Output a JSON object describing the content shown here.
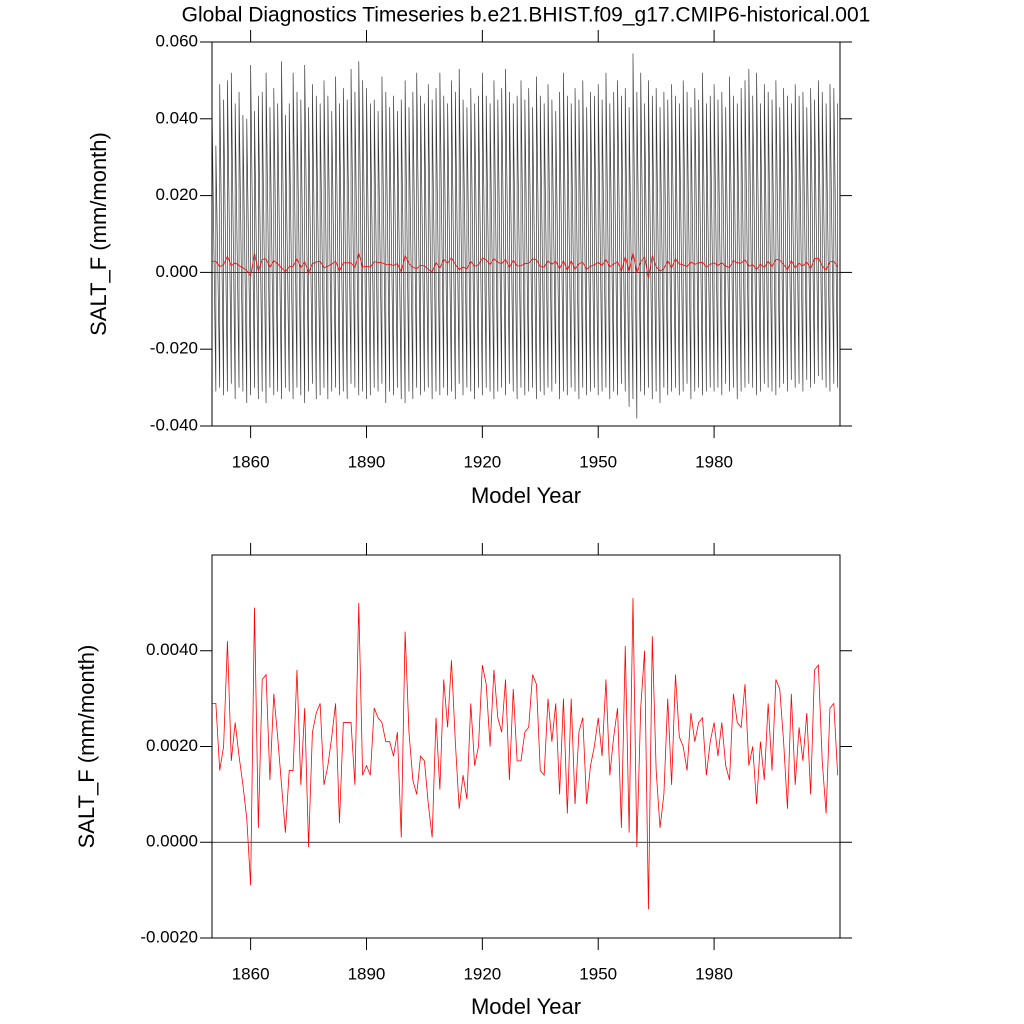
{
  "chart_data": [
    {
      "type": "line",
      "title": "Global Diagnostics Timeseries b.e21.BHIST.f09_g17.CMIP6-historical.001",
      "y_label": "SALT_F (mm/month)",
      "x_label": "Model Year",
      "xlim": [
        1850,
        2012.6
      ],
      "xticks": [
        1860,
        1890,
        1920,
        1950,
        1980
      ],
      "ylim": [
        -0.04,
        0.06
      ],
      "yticks": [
        {
          "value": -0.04,
          "label": "-0.040"
        },
        {
          "value": -0.02,
          "label": "-0.020"
        },
        {
          "value": 0,
          "label": "0.000"
        },
        {
          "value": 0.02,
          "label": "0.020"
        },
        {
          "value": 0.04,
          "label": "0.040"
        },
        {
          "value": 0.06,
          "label": "0.060"
        }
      ],
      "reference_line": 0,
      "x": [
        1850,
        1851,
        1852,
        1853,
        1854,
        1855,
        1856,
        1857,
        1858,
        1859,
        1860,
        1861,
        1862,
        1863,
        1864,
        1865,
        1866,
        1867,
        1868,
        1869,
        1870,
        1871,
        1872,
        1873,
        1874,
        1875,
        1876,
        1877,
        1878,
        1879,
        1880,
        1881,
        1882,
        1883,
        1884,
        1885,
        1886,
        1887,
        1888,
        1889,
        1890,
        1891,
        1892,
        1893,
        1894,
        1895,
        1896,
        1897,
        1898,
        1899,
        1900,
        1901,
        1902,
        1903,
        1904,
        1905,
        1906,
        1907,
        1908,
        1909,
        1910,
        1911,
        1912,
        1913,
        1914,
        1915,
        1916,
        1917,
        1918,
        1919,
        1920,
        1921,
        1922,
        1923,
        1924,
        1925,
        1926,
        1927,
        1928,
        1929,
        1930,
        1931,
        1932,
        1933,
        1934,
        1935,
        1936,
        1937,
        1938,
        1939,
        1940,
        1941,
        1942,
        1943,
        1944,
        1945,
        1946,
        1947,
        1948,
        1949,
        1950,
        1951,
        1952,
        1953,
        1954,
        1955,
        1956,
        1957,
        1958,
        1959,
        1960,
        1961,
        1962,
        1963,
        1964,
        1965,
        1966,
        1967,
        1968,
        1969,
        1970,
        1971,
        1972,
        1973,
        1974,
        1975,
        1976,
        1977,
        1978,
        1979,
        1980,
        1981,
        1982,
        1983,
        1984,
        1985,
        1986,
        1987,
        1988,
        1989,
        1990,
        1991,
        1992,
        1993,
        1994,
        1995,
        1996,
        1997,
        1998,
        1999,
        2000,
        2001,
        2002,
        2003,
        2004,
        2005,
        2006,
        2007,
        2008,
        2009,
        2010,
        2011,
        2012
      ],
      "series": [
        {
          "color": "#3a3a3a",
          "high": [
            0.043,
            0.033,
            0.049,
            0.045,
            0.05,
            0.052,
            0.044,
            0.047,
            0.041,
            0.04,
            0.054,
            0.042,
            0.046,
            0.047,
            0.052,
            0.043,
            0.048,
            0.044,
            0.055,
            0.041,
            0.044,
            0.052,
            0.047,
            0.045,
            0.054,
            0.043,
            0.049,
            0.046,
            0.044,
            0.05,
            0.046,
            0.042,
            0.051,
            0.044,
            0.048,
            0.045,
            0.053,
            0.047,
            0.055,
            0.05,
            0.048,
            0.044,
            0.045,
            0.042,
            0.051,
            0.047,
            0.043,
            0.046,
            0.042,
            0.045,
            0.05,
            0.043,
            0.047,
            0.052,
            0.046,
            0.044,
            0.049,
            0.045,
            0.048,
            0.052,
            0.046,
            0.044,
            0.05,
            0.047,
            0.053,
            0.045,
            0.043,
            0.048,
            0.044,
            0.046,
            0.052,
            0.046,
            0.044,
            0.05,
            0.045,
            0.048,
            0.053,
            0.047,
            0.044,
            0.046,
            0.05,
            0.045,
            0.048,
            0.043,
            0.051,
            0.046,
            0.044,
            0.049,
            0.045,
            0.042,
            0.047,
            0.052,
            0.046,
            0.044,
            0.048,
            0.045,
            0.05,
            0.043,
            0.047,
            0.046,
            0.049,
            0.045,
            0.052,
            0.044,
            0.047,
            0.05,
            0.046,
            0.048,
            0.043,
            0.057,
            0.047,
            0.052,
            0.044,
            0.05,
            0.046,
            0.048,
            0.043,
            0.047,
            0.045,
            0.049,
            0.046,
            0.044,
            0.05,
            0.047,
            0.043,
            0.048,
            0.045,
            0.052,
            0.044,
            0.046,
            0.049,
            0.045,
            0.047,
            0.043,
            0.051,
            0.046,
            0.044,
            0.048,
            0.05,
            0.053,
            0.046,
            0.052,
            0.044,
            0.049,
            0.047,
            0.045,
            0.05,
            0.043,
            0.048,
            0.046,
            0.044,
            0.049,
            0.046,
            0.047,
            0.043,
            0.048,
            0.045,
            0.05,
            0.047,
            0.044,
            0.049,
            0.048,
            0.044
          ],
          "low": [
            -0.029,
            -0.031,
            -0.03,
            -0.032,
            -0.031,
            -0.029,
            -0.033,
            -0.03,
            -0.031,
            -0.034,
            -0.032,
            -0.03,
            -0.033,
            -0.031,
            -0.034,
            -0.03,
            -0.032,
            -0.031,
            -0.033,
            -0.03,
            -0.031,
            -0.033,
            -0.03,
            -0.032,
            -0.034,
            -0.031,
            -0.029,
            -0.033,
            -0.032,
            -0.03,
            -0.033,
            -0.031,
            -0.03,
            -0.032,
            -0.031,
            -0.033,
            -0.029,
            -0.03,
            -0.032,
            -0.031,
            -0.033,
            -0.032,
            -0.03,
            -0.031,
            -0.029,
            -0.034,
            -0.031,
            -0.032,
            -0.03,
            -0.033,
            -0.034,
            -0.031,
            -0.033,
            -0.03,
            -0.032,
            -0.031,
            -0.03,
            -0.033,
            -0.031,
            -0.032,
            -0.03,
            -0.032,
            -0.031,
            -0.033,
            -0.029,
            -0.032,
            -0.03,
            -0.031,
            -0.033,
            -0.03,
            -0.032,
            -0.03,
            -0.031,
            -0.033,
            -0.031,
            -0.03,
            -0.032,
            -0.029,
            -0.031,
            -0.033,
            -0.03,
            -0.032,
            -0.031,
            -0.03,
            -0.033,
            -0.031,
            -0.032,
            -0.03,
            -0.031,
            -0.029,
            -0.033,
            -0.031,
            -0.032,
            -0.03,
            -0.031,
            -0.033,
            -0.03,
            -0.032,
            -0.031,
            -0.03,
            -0.032,
            -0.031,
            -0.03,
            -0.033,
            -0.031,
            -0.032,
            -0.029,
            -0.031,
            -0.035,
            -0.033,
            -0.038,
            -0.031,
            -0.032,
            -0.03,
            -0.033,
            -0.031,
            -0.034,
            -0.03,
            -0.032,
            -0.031,
            -0.03,
            -0.032,
            -0.031,
            -0.029,
            -0.033,
            -0.031,
            -0.03,
            -0.032,
            -0.031,
            -0.03,
            -0.031,
            -0.03,
            -0.032,
            -0.029,
            -0.031,
            -0.03,
            -0.033,
            -0.031,
            -0.03,
            -0.029,
            -0.03,
            -0.032,
            -0.031,
            -0.029,
            -0.03,
            -0.031,
            -0.032,
            -0.03,
            -0.029,
            -0.031,
            -0.028,
            -0.03,
            -0.029,
            -0.031,
            -0.028,
            -0.03,
            -0.029,
            -0.027,
            -0.028,
            -0.03,
            -0.031,
            -0.029,
            -0.03
          ]
        },
        {
          "color": "#ff0000",
          "values": [
            0.0029,
            0.0029,
            0.0015,
            0.002,
            0.0042,
            0.0017,
            0.0025,
            0.0018,
            0.0012,
            0.0005,
            -0.0009,
            0.0049,
            0.0003,
            0.0034,
            0.0035,
            0.0013,
            0.0031,
            0.0022,
            0.0012,
            0.0002,
            0.0015,
            0.0015,
            0.0036,
            0.0012,
            0.0028,
            -0.0001,
            0.0023,
            0.0027,
            0.0029,
            0.0012,
            0.0016,
            0.0022,
            0.0029,
            0.0004,
            0.0025,
            0.0025,
            0.0025,
            0.0012,
            0.005,
            0.0014,
            0.0016,
            0.0014,
            0.0028,
            0.0026,
            0.0025,
            0.0021,
            0.0021,
            0.0018,
            0.0023,
            0.0001,
            0.0044,
            0.0023,
            0.0013,
            0.001,
            0.0018,
            0.0017,
            0.0008,
            0.0001,
            0.0026,
            0.0011,
            0.0034,
            0.0024,
            0.0038,
            0.0021,
            0.0007,
            0.0014,
            0.0009,
            0.0029,
            0.0016,
            0.002,
            0.0037,
            0.0033,
            0.002,
            0.0036,
            0.0026,
            0.0023,
            0.0034,
            0.0013,
            0.0032,
            0.0017,
            0.0017,
            0.0023,
            0.0024,
            0.0035,
            0.0033,
            0.0015,
            0.0014,
            0.003,
            0.0021,
            0.0029,
            0.001,
            0.003,
            0.0006,
            0.003,
            0.0008,
            0.0023,
            0.0026,
            0.0008,
            0.0016,
            0.002,
            0.0026,
            0.0018,
            0.0034,
            0.0014,
            0.0022,
            0.0028,
            0.0003,
            0.0041,
            0.0002,
            0.0051,
            -0.0001,
            0.0028,
            0.004,
            -0.0014,
            0.0043,
            0.0015,
            0.0003,
            0.001,
            0.003,
            0.0012,
            0.0035,
            0.0022,
            0.002,
            0.0015,
            0.0027,
            0.0021,
            0.0025,
            0.0026,
            0.0014,
            0.0021,
            0.0025,
            0.0018,
            0.0025,
            0.0016,
            0.0013,
            0.0031,
            0.0025,
            0.0024,
            0.0033,
            0.0016,
            0.002,
            0.0008,
            0.0021,
            0.0013,
            0.0029,
            0.0015,
            0.0034,
            0.0032,
            0.0021,
            0.0007,
            0.0031,
            0.0012,
            0.0024,
            0.0017,
            0.0027,
            0.001,
            0.0036,
            0.0037,
            0.0017,
            0.0006,
            0.0028,
            0.0029,
            0.0014
          ]
        }
      ]
    },
    {
      "type": "line",
      "y_label": "SALT_F (mm/month)",
      "x_label": "Model Year",
      "xlim": [
        1850,
        2012.6
      ],
      "xticks": [
        1860,
        1890,
        1920,
        1950,
        1980
      ],
      "ylim": [
        -0.002,
        0.006
      ],
      "yticks": [
        {
          "value": -0.002,
          "label": "-0.0020"
        },
        {
          "value": 0,
          "label": "0.0000"
        },
        {
          "value": 0.002,
          "label": "0.0020"
        },
        {
          "value": 0.004,
          "label": "0.0040"
        }
      ],
      "reference_line": 0,
      "x": [
        1850,
        1851,
        1852,
        1853,
        1854,
        1855,
        1856,
        1857,
        1858,
        1859,
        1860,
        1861,
        1862,
        1863,
        1864,
        1865,
        1866,
        1867,
        1868,
        1869,
        1870,
        1871,
        1872,
        1873,
        1874,
        1875,
        1876,
        1877,
        1878,
        1879,
        1880,
        1881,
        1882,
        1883,
        1884,
        1885,
        1886,
        1887,
        1888,
        1889,
        1890,
        1891,
        1892,
        1893,
        1894,
        1895,
        1896,
        1897,
        1898,
        1899,
        1900,
        1901,
        1902,
        1903,
        1904,
        1905,
        1906,
        1907,
        1908,
        1909,
        1910,
        1911,
        1912,
        1913,
        1914,
        1915,
        1916,
        1917,
        1918,
        1919,
        1920,
        1921,
        1922,
        1923,
        1924,
        1925,
        1926,
        1927,
        1928,
        1929,
        1930,
        1931,
        1932,
        1933,
        1934,
        1935,
        1936,
        1937,
        1938,
        1939,
        1940,
        1941,
        1942,
        1943,
        1944,
        1945,
        1946,
        1947,
        1948,
        1949,
        1950,
        1951,
        1952,
        1953,
        1954,
        1955,
        1956,
        1957,
        1958,
        1959,
        1960,
        1961,
        1962,
        1963,
        1964,
        1965,
        1966,
        1967,
        1968,
        1969,
        1970,
        1971,
        1972,
        1973,
        1974,
        1975,
        1976,
        1977,
        1978,
        1979,
        1980,
        1981,
        1982,
        1983,
        1984,
        1985,
        1986,
        1987,
        1988,
        1989,
        1990,
        1991,
        1992,
        1993,
        1994,
        1995,
        1996,
        1997,
        1998,
        1999,
        2000,
        2001,
        2002,
        2003,
        2004,
        2005,
        2006,
        2007,
        2008,
        2009,
        2010,
        2011,
        2012
      ],
      "series": [
        {
          "color": "#ff0000",
          "values": [
            0.0029,
            0.0029,
            0.0015,
            0.002,
            0.0042,
            0.0017,
            0.0025,
            0.0018,
            0.0012,
            0.0005,
            -0.0009,
            0.0049,
            0.0003,
            0.0034,
            0.0035,
            0.0013,
            0.0031,
            0.0022,
            0.0012,
            0.0002,
            0.0015,
            0.0015,
            0.0036,
            0.0012,
            0.0028,
            -0.0001,
            0.0023,
            0.0027,
            0.0029,
            0.0012,
            0.0016,
            0.0022,
            0.0029,
            0.0004,
            0.0025,
            0.0025,
            0.0025,
            0.0012,
            0.005,
            0.0014,
            0.0016,
            0.0014,
            0.0028,
            0.0026,
            0.0025,
            0.0021,
            0.0021,
            0.0018,
            0.0023,
            0.0001,
            0.0044,
            0.0023,
            0.0013,
            0.001,
            0.0018,
            0.0017,
            0.0008,
            0.0001,
            0.0026,
            0.0011,
            0.0034,
            0.0024,
            0.0038,
            0.0021,
            0.0007,
            0.0014,
            0.0009,
            0.0029,
            0.0016,
            0.002,
            0.0037,
            0.0033,
            0.002,
            0.0036,
            0.0026,
            0.0023,
            0.0034,
            0.0013,
            0.0032,
            0.0017,
            0.0017,
            0.0023,
            0.0024,
            0.0035,
            0.0033,
            0.0015,
            0.0014,
            0.003,
            0.0021,
            0.0029,
            0.001,
            0.003,
            0.0006,
            0.003,
            0.0008,
            0.0023,
            0.0026,
            0.0008,
            0.0016,
            0.002,
            0.0026,
            0.0018,
            0.0034,
            0.0014,
            0.0022,
            0.0028,
            0.0003,
            0.0041,
            0.0002,
            0.0051,
            -0.0001,
            0.0028,
            0.004,
            -0.0014,
            0.0043,
            0.0015,
            0.0003,
            0.001,
            0.003,
            0.0012,
            0.0035,
            0.0022,
            0.002,
            0.0015,
            0.0027,
            0.0021,
            0.0025,
            0.0026,
            0.0014,
            0.0021,
            0.0025,
            0.0018,
            0.0025,
            0.0016,
            0.0013,
            0.0031,
            0.0025,
            0.0024,
            0.0033,
            0.0016,
            0.002,
            0.0008,
            0.0021,
            0.0013,
            0.0029,
            0.0015,
            0.0034,
            0.0032,
            0.0021,
            0.0007,
            0.0031,
            0.0012,
            0.0024,
            0.0017,
            0.0027,
            0.001,
            0.0036,
            0.0037,
            0.0017,
            0.0006,
            0.0028,
            0.0029,
            0.0014
          ]
        }
      ]
    }
  ]
}
